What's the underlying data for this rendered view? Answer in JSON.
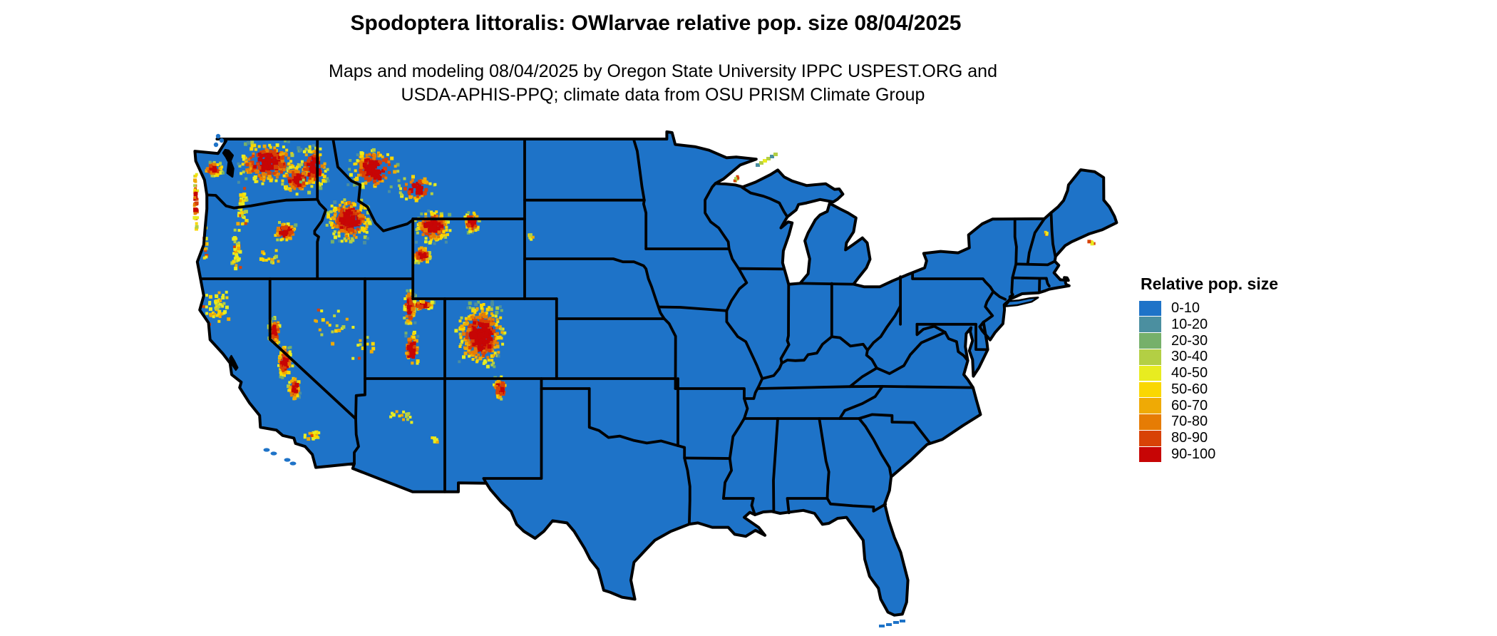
{
  "title": "Spodoptera littoralis: OWlarvae relative pop. size 08/04/2025",
  "subtitle_line1": "Maps and modeling 08/04/2025 by Oregon State University IPPC USPEST.ORG and",
  "subtitle_line2": "USDA-APHIS-PPQ; climate data from OSU PRISM Climate Group",
  "legend": {
    "title": "Relative pop. size",
    "classes": [
      {
        "label": "0-10",
        "color": "#1e73c8"
      },
      {
        "label": "10-20",
        "color": "#4b8fa0"
      },
      {
        "label": "20-30",
        "color": "#76b06a"
      },
      {
        "label": "30-40",
        "color": "#b3cf44"
      },
      {
        "label": "40-50",
        "color": "#e8ec20"
      },
      {
        "label": "50-60",
        "color": "#fad702"
      },
      {
        "label": "60-70",
        "color": "#efaa05"
      },
      {
        "label": "70-80",
        "color": "#e67c04"
      },
      {
        "label": "80-90",
        "color": "#d84206"
      },
      {
        "label": "90-100",
        "color": "#c70505"
      }
    ]
  },
  "map": {
    "base_color": "#1e73c8",
    "border_color": "#000000",
    "water_color": "#ffffff"
  }
}
